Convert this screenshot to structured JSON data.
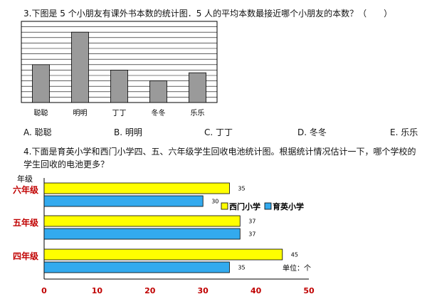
{
  "q3": {
    "text": "3.下图是 5 个小朋友有课外书本数的统计图．5 人的平均本数最接近哪个小朋友的本数？（　　）",
    "options": [
      "A. 聪聪",
      "B. 明明",
      "C. 丁丁",
      "D. 冬冬",
      "E. 乐乐"
    ]
  },
  "q4": {
    "text_line1": "4.下面是育英小学和西门小学四、五、六年级学生回收电池统计图。根据统计情况估计一下，哪个学校的",
    "text_line2": "学生回收的电池更多？"
  },
  "chart_data": [
    {
      "type": "bar",
      "categories": [
        "聪聪",
        "明明",
        "丁丁",
        "冬冬",
        "乐乐"
      ],
      "values": [
        7,
        13,
        6,
        4,
        5.5
      ],
      "ylim": [
        0,
        15
      ],
      "grid": true
    },
    {
      "type": "bar",
      "orientation": "horizontal",
      "ylabel": "年级",
      "categories": [
        "六年级",
        "五年级",
        "四年级"
      ],
      "series": [
        {
          "name": "西门小学",
          "values": [
            35,
            37,
            45
          ],
          "color": "#ffff00"
        },
        {
          "name": "育英小学",
          "values": [
            30,
            37,
            35
          ],
          "color": "#33aaee"
        }
      ],
      "xticks": [
        "0",
        "10",
        "20",
        "30",
        "40",
        "50"
      ],
      "xlim": [
        0,
        50
      ],
      "unit_label": "单位：个",
      "legend": "right"
    }
  ]
}
